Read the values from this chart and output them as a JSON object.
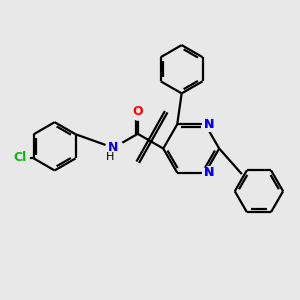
{
  "bg_color": "#e8e8e8",
  "bond_color": "#000000",
  "N_color": "#0000ff",
  "O_color": "#ff0000",
  "Cl_color": "#00bb00",
  "bond_width": 1.6,
  "figsize": [
    3.0,
    3.0
  ],
  "dpi": 100,
  "xlim": [
    0,
    10
  ],
  "ylim": [
    0,
    10
  ]
}
